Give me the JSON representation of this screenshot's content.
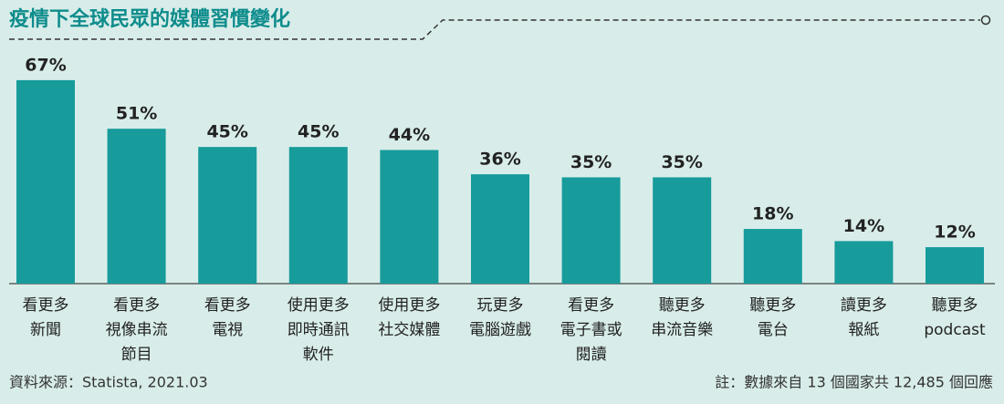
{
  "chart_data": {
    "type": "bar",
    "title": "疫情下全球民眾的媒體習慣變化",
    "categories": [
      [
        "看更多",
        "新聞"
      ],
      [
        "看更多",
        "視像串流",
        "節目"
      ],
      [
        "看更多",
        "電視"
      ],
      [
        "使用更多",
        "即時通訊",
        "軟件"
      ],
      [
        "使用更多",
        "社交媒體"
      ],
      [
        "玩更多",
        "電腦遊戲"
      ],
      [
        "看更多",
        "電子書或",
        "閱讀"
      ],
      [
        "聽更多",
        "串流音樂"
      ],
      [
        "聽更多",
        "電台"
      ],
      [
        "讀更多",
        "報紙"
      ],
      [
        "聽更多",
        "podcast"
      ]
    ],
    "values": [
      67,
      51,
      45,
      45,
      44,
      36,
      35,
      35,
      18,
      14,
      12
    ],
    "value_labels": [
      "67%",
      "51%",
      "45%",
      "45%",
      "44%",
      "36%",
      "35%",
      "35%",
      "18%",
      "14%",
      "12%"
    ],
    "color": "#179b9b",
    "source": "資料來源：Statista, 2021.03",
    "note": "註：數據來自 13 個國家共 12,485 個回應"
  }
}
